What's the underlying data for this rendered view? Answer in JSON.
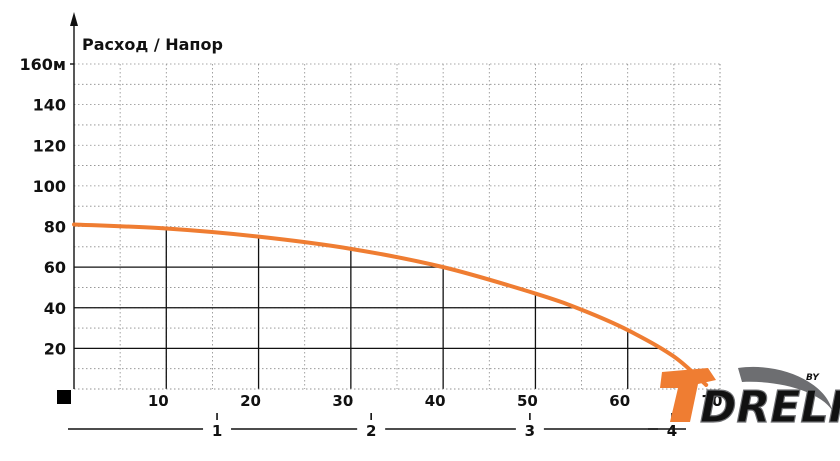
{
  "chart_data": {
    "type": "line",
    "title": "Расход / Напор",
    "ylabel": "",
    "xlabel": "",
    "xlim": [
      0,
      70
    ],
    "ylim": [
      0,
      160
    ],
    "grid": true,
    "x_ticks": [
      "10",
      "20",
      "30",
      "40",
      "50",
      "60",
      "70"
    ],
    "y_ticks": [
      "160м",
      "140",
      "120",
      "100",
      "80",
      "60",
      "40",
      "20"
    ],
    "y_tick_values": [
      160,
      140,
      120,
      100,
      80,
      60,
      40,
      20
    ],
    "secondary_x_ticks": [
      "1",
      "2",
      "3",
      "4"
    ],
    "secondary_x_values": [
      15.5,
      32.2,
      49.4,
      64.8
    ],
    "series": [
      {
        "color": "#ef7d32",
        "x": [
          0,
          10,
          20,
          30,
          40,
          50,
          55,
          60,
          65,
          68.5
        ],
        "y": [
          81,
          79,
          75,
          69,
          60,
          47,
          39,
          29,
          16,
          2
        ]
      }
    ],
    "highlight_points": [
      {
        "x": 10,
        "y": 79
      },
      {
        "x": 20,
        "y": 75
      },
      {
        "x": 30,
        "y": 69
      },
      {
        "x": 40,
        "y": 60
      },
      {
        "x": 50,
        "y": 47
      },
      {
        "x": 60,
        "y": 29
      }
    ]
  },
  "logo": {
    "text": "DRELI",
    "suffix": "BY",
    "primary_color": "#ef7d32",
    "secondary_color": "#6d6e71"
  }
}
